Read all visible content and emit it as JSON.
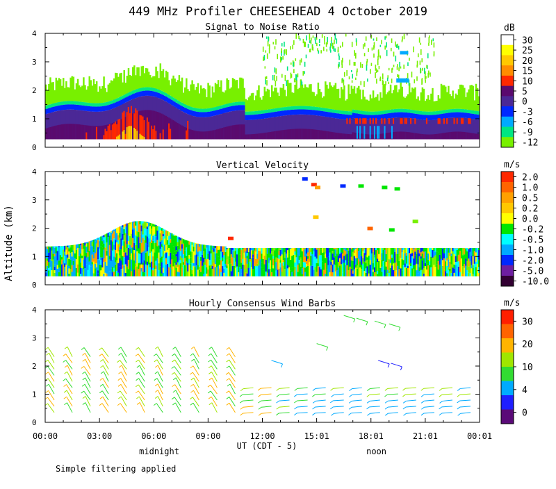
{
  "chart_data": {
    "type": "heatmap",
    "title": "449 MHz Profiler CHEESEHEAD  4 October 2019",
    "ylabel": "Altitude (km)",
    "xlabel": "UT  (CDT - 5)",
    "x_ticks": [
      "00:00",
      "03:00",
      "06:00",
      "09:00",
      "12:00",
      "15:01",
      "18:01",
      "21:01",
      "00:01"
    ],
    "x_tick_hours": [
      0,
      3,
      6,
      9,
      12,
      15,
      18,
      21,
      24
    ],
    "xlim_hours": [
      0,
      24
    ],
    "ylim_km": [
      0,
      4
    ],
    "y_ticks": [
      "0",
      "1",
      "2",
      "3",
      "4"
    ],
    "day_labels": [
      {
        "text": "midnight",
        "hour": 6.3
      },
      {
        "text": "noon",
        "hour": 18.3
      }
    ],
    "footer_note": "Simple filtering applied",
    "panels": [
      {
        "name": "snr",
        "title": "Signal to Noise Ratio",
        "unit": "dB",
        "colorbar_labels": [
          "30",
          "25",
          "20",
          "15",
          "10",
          "5",
          "0",
          "-3",
          "-6",
          "-9",
          "-12"
        ],
        "colorbar_colors": [
          "#ffffff",
          "#ffff00",
          "#ffc800",
          "#ff8c00",
          "#ff2800",
          "#5a0a6e",
          "#4b2896",
          "#0028ff",
          "#00aaff",
          "#00e682",
          "#78f000"
        ]
      },
      {
        "name": "vertical_velocity",
        "title": "Vertical Velocity",
        "unit": "m/s",
        "colorbar_labels": [
          "2.0",
          "1.0",
          "0.5",
          "0.2",
          "0.0",
          "-0.2",
          "-0.5",
          "-1.0",
          "-2.0",
          "-5.0",
          "-10.0"
        ],
        "colorbar_colors": [
          "#ff2800",
          "#ff6400",
          "#ffa000",
          "#ffc800",
          "#ffff00",
          "#00e600",
          "#00ffff",
          "#00aaff",
          "#0028ff",
          "#6e1ea0",
          "#320032"
        ]
      },
      {
        "name": "wind_barbs",
        "title": "Hourly Consensus Wind Barbs",
        "unit": "m/s",
        "colorbar_labels": [
          "30",
          "20",
          "10",
          "4",
          "0"
        ],
        "colorbar_colors": [
          "#ff1e00",
          "#ff6400",
          "#ffb400",
          "#a0e600",
          "#32dc32",
          "#00aaff",
          "#1e1eff",
          "#5a0a78"
        ]
      }
    ]
  }
}
